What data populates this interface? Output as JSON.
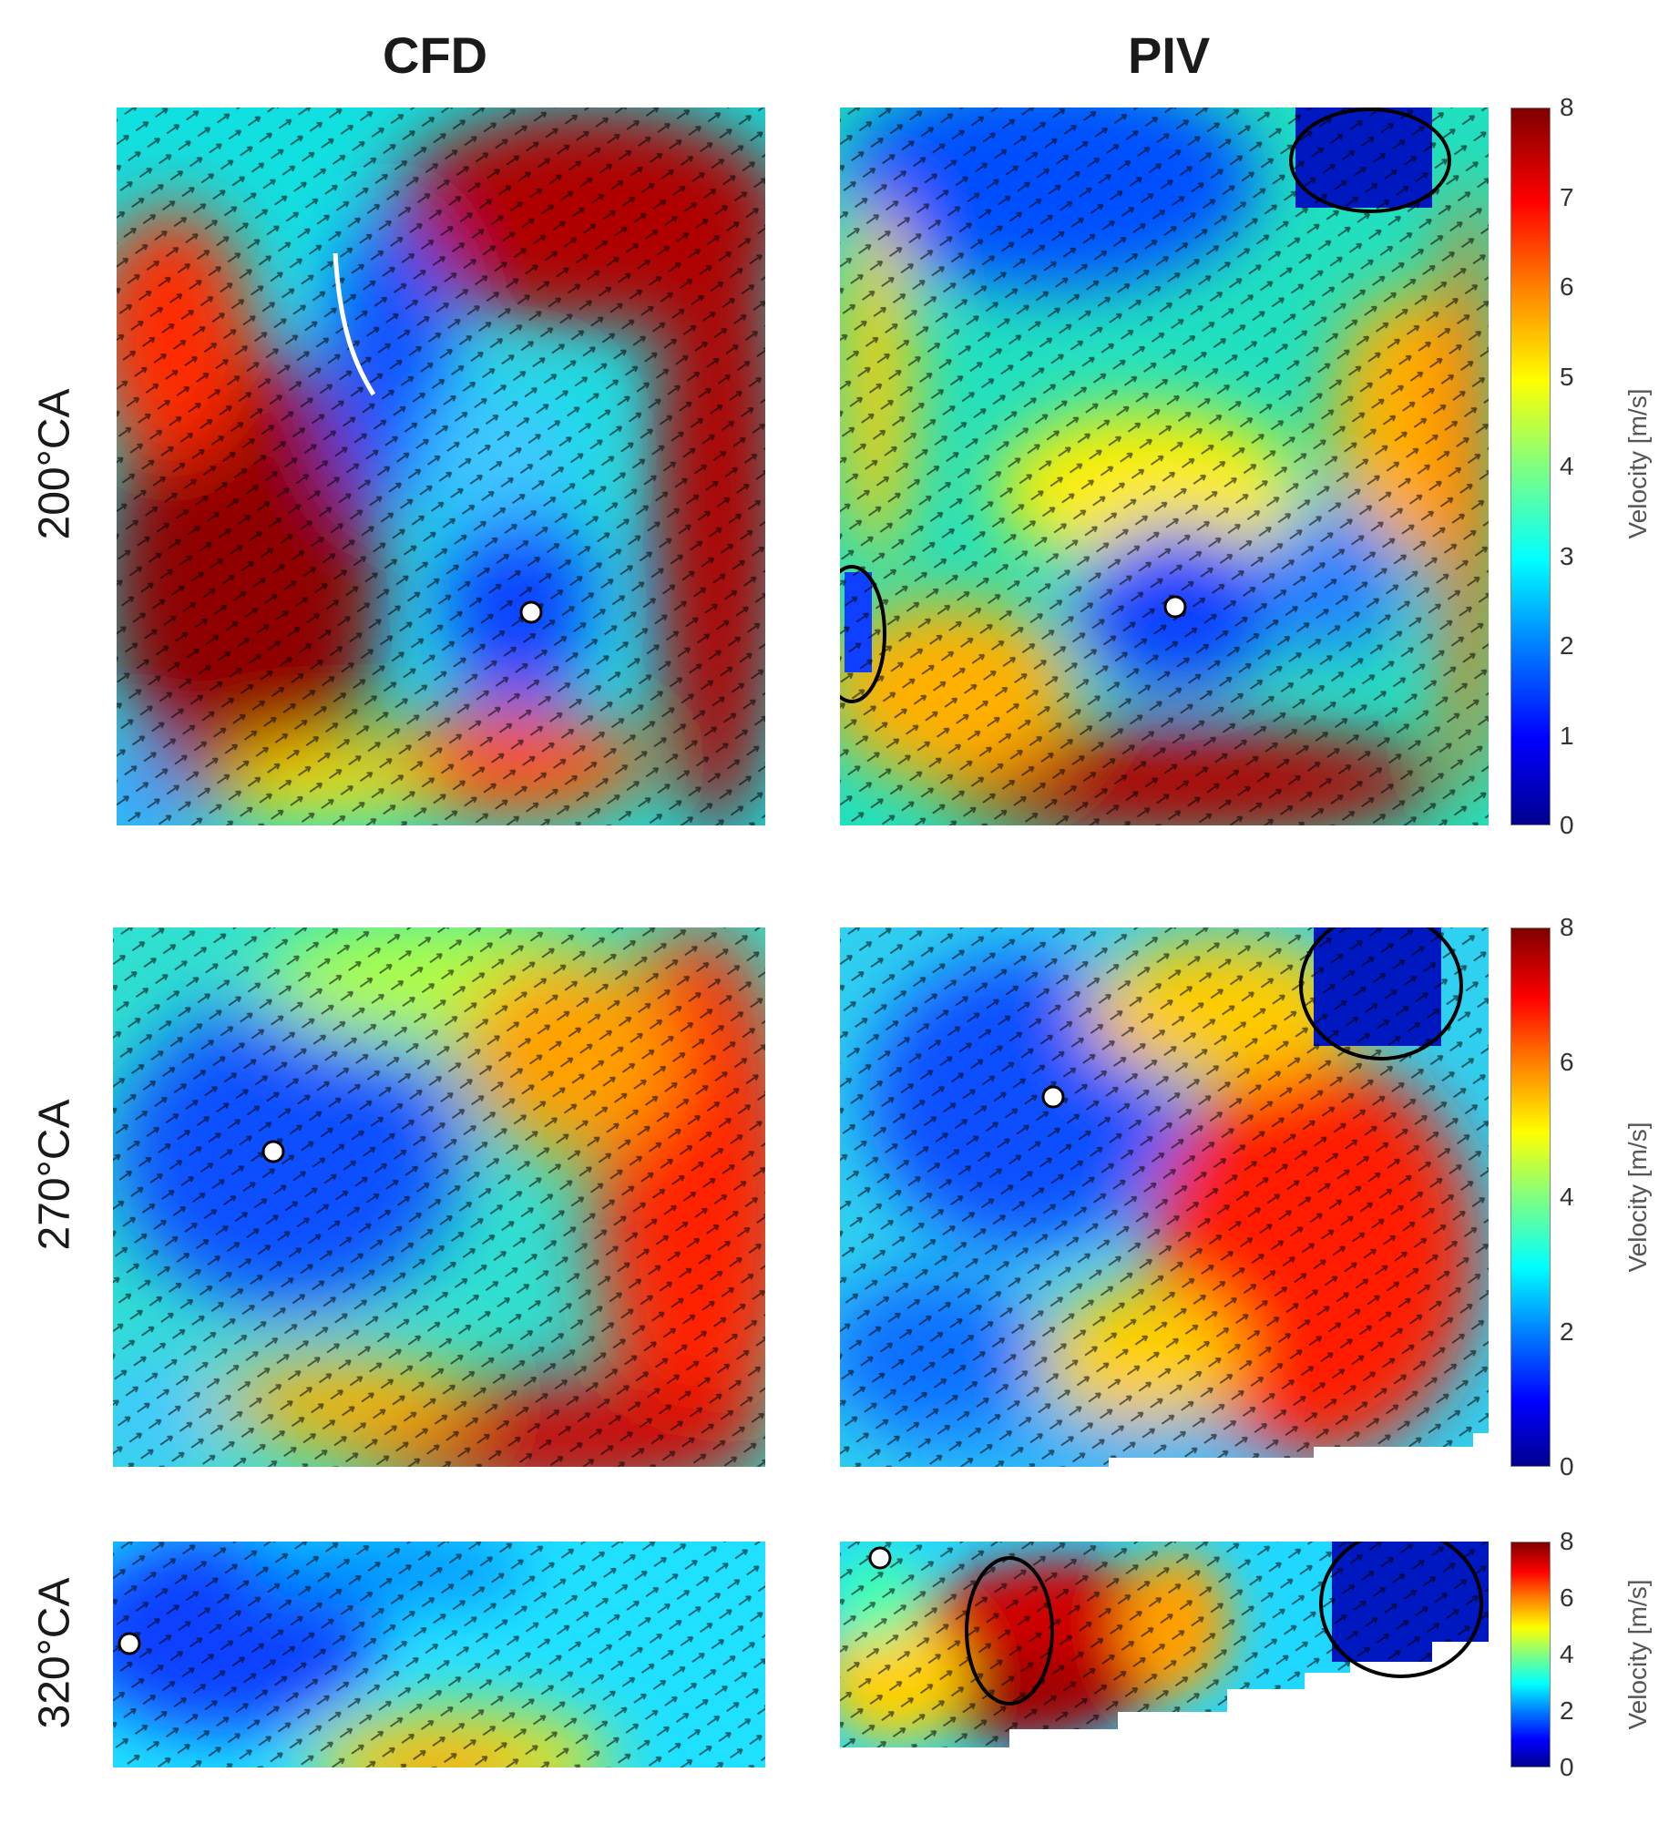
{
  "columns": {
    "cfd": "CFD",
    "piv": "PIV"
  },
  "rows": [
    {
      "label": "200°CA"
    },
    {
      "label": "270°CA"
    },
    {
      "label": "320°CA"
    }
  ],
  "colorbar": {
    "label": "Velocity [m/s]",
    "ticks_full": [
      "0",
      "1",
      "2",
      "3",
      "4",
      "5",
      "6",
      "7",
      "8"
    ],
    "ticks_even": [
      "0",
      "2",
      "4",
      "6",
      "8"
    ],
    "range": [
      0,
      8
    ],
    "colormap": "jet"
  },
  "colors": {
    "ellipse": "#000000",
    "vortex_marker": "#ffffff",
    "arrow": "#000000"
  }
}
